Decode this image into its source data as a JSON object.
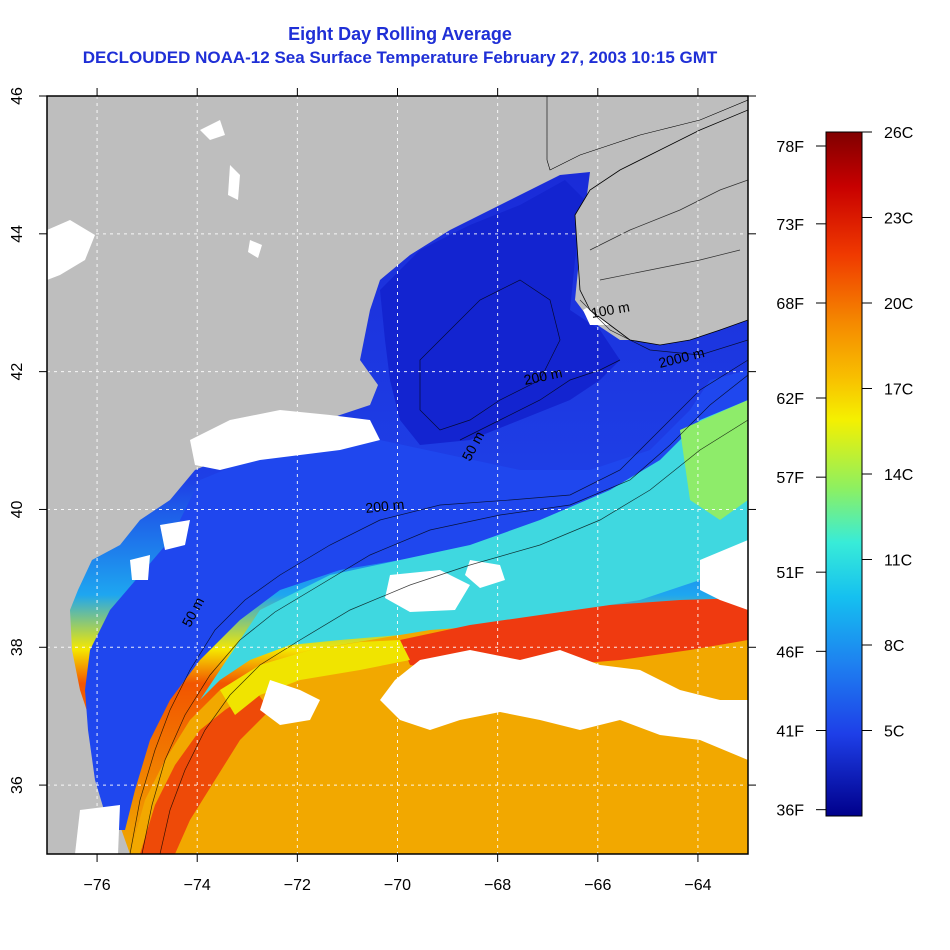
{
  "title": "Eight Day Rolling Average",
  "subtitle": "DECLOUDED NOAA-12 Sea Surface Temperature February 27, 2003 10:15 GMT",
  "map": {
    "lon_range": [
      -77,
      -63
    ],
    "lat_range": [
      35,
      46
    ],
    "lon_ticks": [
      -76,
      -74,
      -72,
      -70,
      -68,
      -66,
      -64
    ],
    "lat_ticks": [
      36,
      38,
      40,
      42,
      44,
      46
    ],
    "lon_tick_labels": [
      "−76",
      "−74",
      "−72",
      "−70",
      "−68",
      "−66",
      "−64"
    ],
    "lat_tick_labels": [
      "36",
      "38",
      "40",
      "42",
      "44",
      "46"
    ],
    "grid": true,
    "colors": {
      "land": "#bebebe",
      "cloud": "#ffffff",
      "frame": "#000000",
      "grid": "#ffffff",
      "title": "#1f2fd6"
    },
    "contour_labels": [
      "50 m",
      "200 m",
      "50 m",
      "200 m",
      "2000 m",
      "100 m"
    ]
  },
  "colorbar": {
    "celsius_labels": [
      "26C",
      "23C",
      "20C",
      "17C",
      "14C",
      "11C",
      "8C",
      "5C"
    ],
    "celsius_values": [
      26,
      23,
      20,
      17,
      14,
      11,
      8,
      5
    ],
    "fahrenheit_labels": [
      "78F",
      "73F",
      "68F",
      "62F",
      "57F",
      "51F",
      "46F",
      "41F",
      "36F"
    ],
    "fahrenheit_values": [
      78,
      73,
      68,
      62,
      57,
      51,
      46,
      41,
      36
    ],
    "range_c": [
      2,
      26
    ],
    "stops": [
      "#00008b",
      "#0a1ecf",
      "#1e4cf0",
      "#1e7ff0",
      "#15c0f0",
      "#38ecd8",
      "#8ef060",
      "#f2f200",
      "#f8b800",
      "#f27a00",
      "#e83a00",
      "#b80000",
      "#800000"
    ]
  }
}
